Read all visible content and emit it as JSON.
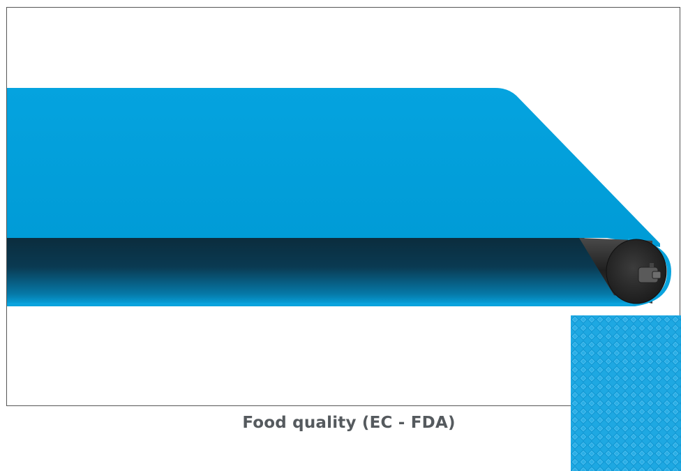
{
  "caption": "Food quality (EC - FDA)",
  "colors": {
    "belt": "#00a0dc",
    "belt_shadow": "#0a2f42",
    "roller": "#2b2b2b",
    "texture": "#1aa7e0",
    "caption": "#555a5e",
    "frame_border": "#555555"
  },
  "icons": {
    "belt_illustration": "conveyor-belt-illustration",
    "roller": "drive-roller-icon",
    "texture": "belt-surface-texture-swatch"
  }
}
